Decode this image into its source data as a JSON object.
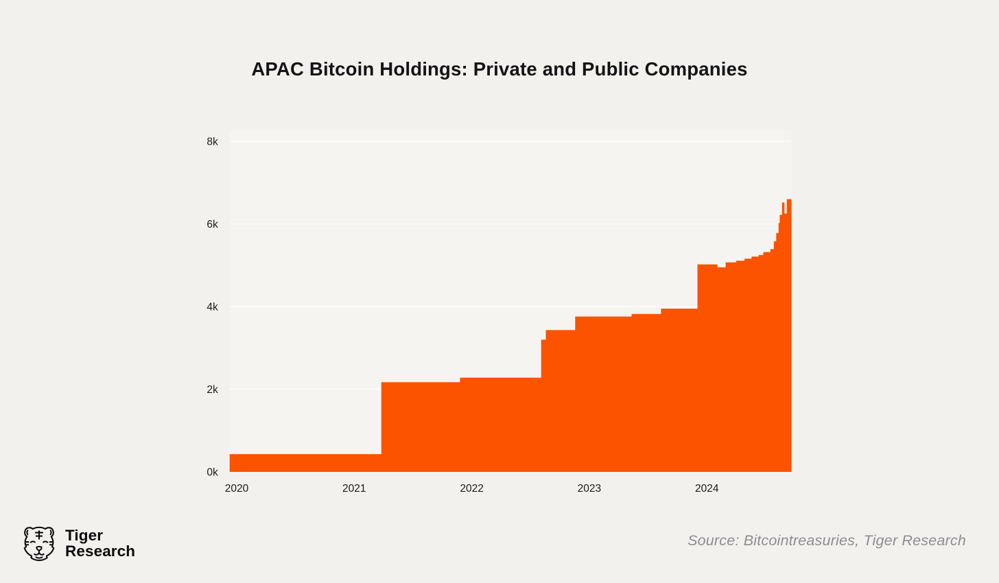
{
  "header": {
    "title": "APAC Bitcoin Holdings: Private and Public Companies"
  },
  "chart_data": {
    "type": "area",
    "style": "step-area",
    "title": "APAC Bitcoin Holdings: Private and Public Companies",
    "xlabel": "",
    "ylabel": "",
    "unit": "thousands of BTC",
    "legend": false,
    "grid": true,
    "xlim": [
      2019.94,
      2024.72
    ],
    "ylim": [
      0,
      8
    ],
    "x_ticks": [
      2020,
      2021,
      2022,
      2023,
      2024
    ],
    "y_ticks": [
      {
        "label": "0k",
        "value": 0
      },
      {
        "label": "2k",
        "value": 2
      },
      {
        "label": "4k",
        "value": 4
      },
      {
        "label": "6k",
        "value": 6
      },
      {
        "label": "8k",
        "value": 8
      }
    ],
    "series": [
      {
        "name": "APAC Bitcoin Holdings (private and public companies)",
        "color": "#FB5300",
        "x_end": 2024.72,
        "steps": [
          {
            "x": 2019.94,
            "y": 0.43
          },
          {
            "x": 2021.23,
            "y": 2.17
          },
          {
            "x": 2021.9,
            "y": 2.28
          },
          {
            "x": 2022.59,
            "y": 3.2
          },
          {
            "x": 2022.63,
            "y": 3.43
          },
          {
            "x": 2022.88,
            "y": 3.76
          },
          {
            "x": 2023.36,
            "y": 3.82
          },
          {
            "x": 2023.61,
            "y": 3.95
          },
          {
            "x": 2023.92,
            "y": 5.02
          },
          {
            "x": 2024.09,
            "y": 4.95
          },
          {
            "x": 2024.16,
            "y": 5.07
          },
          {
            "x": 2024.25,
            "y": 5.11
          },
          {
            "x": 2024.32,
            "y": 5.16
          },
          {
            "x": 2024.38,
            "y": 5.21
          },
          {
            "x": 2024.44,
            "y": 5.25
          },
          {
            "x": 2024.48,
            "y": 5.32
          },
          {
            "x": 2024.54,
            "y": 5.39
          },
          {
            "x": 2024.57,
            "y": 5.58
          },
          {
            "x": 2024.59,
            "y": 5.78
          },
          {
            "x": 2024.61,
            "y": 6.02
          },
          {
            "x": 2024.62,
            "y": 6.22
          },
          {
            "x": 2024.64,
            "y": 6.52
          },
          {
            "x": 2024.66,
            "y": 6.25
          },
          {
            "x": 2024.68,
            "y": 6.6
          }
        ]
      }
    ]
  },
  "footer": {
    "brand_line1": "Tiger",
    "brand_line2": "Research",
    "source": "Source: Bitcointreasuries, Tiger Research"
  },
  "colors": {
    "page_background": "#F2F1EE",
    "plot_background": "#F5F4F1",
    "gridline": "#FCFCFB",
    "area": "#FB5300",
    "title_text": "#141414",
    "axis_text": "#1A1A1A",
    "source_text": "#8D8D8F",
    "logo": "#0C0C0C"
  }
}
